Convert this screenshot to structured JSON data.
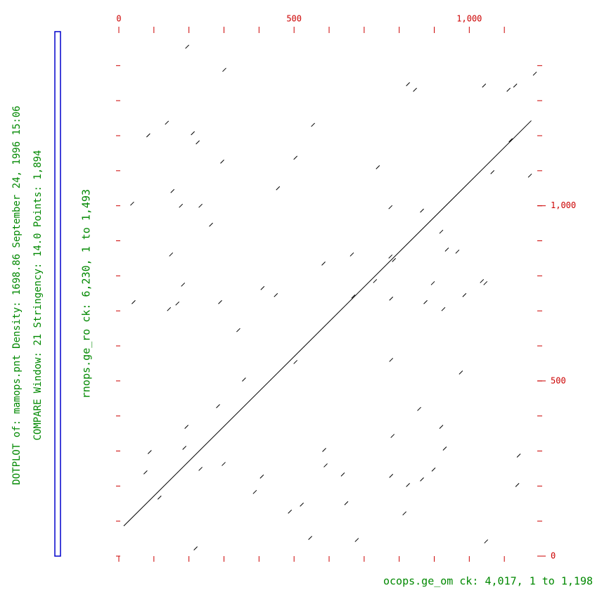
{
  "chart_data": {
    "type": "dotplot",
    "title": "DOTPLOT of: mamops.pnt  Density: 1698.86  September 24, 1996 15:06",
    "subtitle": "COMPARE  Window: 21  Stringency: 14.0  Points: 1,894",
    "x_label": "ocops.ge_om ck: 4,017, 1 to 1,198",
    "y_label": "rnops.ge_ro ck: 6,230, 1 to 1,493",
    "xlim": [
      0,
      1198
    ],
    "ylim": [
      0,
      1493
    ],
    "xticks": [
      0,
      500,
      {
        "value": 1000,
        "label": "1,000"
      }
    ],
    "yticks": [
      0,
      500,
      {
        "value": 1000,
        "label": "1,000"
      }
    ],
    "x_minor_ticks": [
      0,
      100,
      200,
      300,
      400,
      500,
      600,
      700,
      800,
      900,
      1000,
      1100
    ],
    "y_minor_ticks": [
      0,
      100,
      200,
      300,
      400,
      500,
      600,
      700,
      800,
      900,
      1000,
      1100,
      1200,
      1300,
      1400
    ],
    "tick_color": "#cc0000",
    "text_color": "#008800",
    "dot_color": "#000000",
    "line": {
      "x": [
        14,
        1177
      ],
      "y": [
        86,
        1243
      ]
    },
    "x": [
      195,
      301,
      137,
      84,
      211,
      225,
      295,
      153,
      177,
      233,
      263,
      149,
      183,
      167,
      143,
      42,
      38,
      454,
      554,
      504,
      739,
      825,
      845,
      1042,
      1112,
      1131,
      1187,
      1118,
      1066,
      1173,
      865,
      775,
      936,
      920,
      966,
      665,
      775,
      785,
      1036,
      1046,
      986,
      896,
      875,
      777,
      926,
      669,
      731,
      584,
      448,
      410,
      289,
      341,
      357,
      504,
      777,
      976,
      283,
      857,
      920,
      930,
      781,
      586,
      193,
      187,
      88,
      76,
      233,
      299,
      408,
      590,
      639,
      777,
      825,
      865,
      898,
      1141,
      1137,
      522,
      488,
      649,
      815,
      1048,
      219,
      546,
      388,
      679,
      116
    ],
    "y": [
      1454,
      1388,
      1237,
      1201,
      1207,
      1181,
      1126,
      1042,
      1000,
      1000,
      946,
      861,
      775,
      721,
      705,
      725,
      1006,
      1050,
      1231,
      1137,
      1110,
      1347,
      1331,
      1343,
      1331,
      1343,
      1377,
      1187,
      1096,
      1086,
      986,
      996,
      875,
      926,
      869,
      861,
      855,
      845,
      785,
      779,
      745,
      779,
      725,
      735,
      705,
      741,
      785,
      835,
      745,
      765,
      725,
      645,
      504,
      554,
      560,
      524,
      428,
      420,
      369,
      307,
      343,
      303,
      369,
      309,
      297,
      239,
      249,
      263,
      227,
      259,
      233,
      229,
      203,
      219,
      247,
      287,
      203,
      147,
      127,
      151,
      122,
      42,
      22,
      52,
      183,
      46,
      167
    ]
  }
}
